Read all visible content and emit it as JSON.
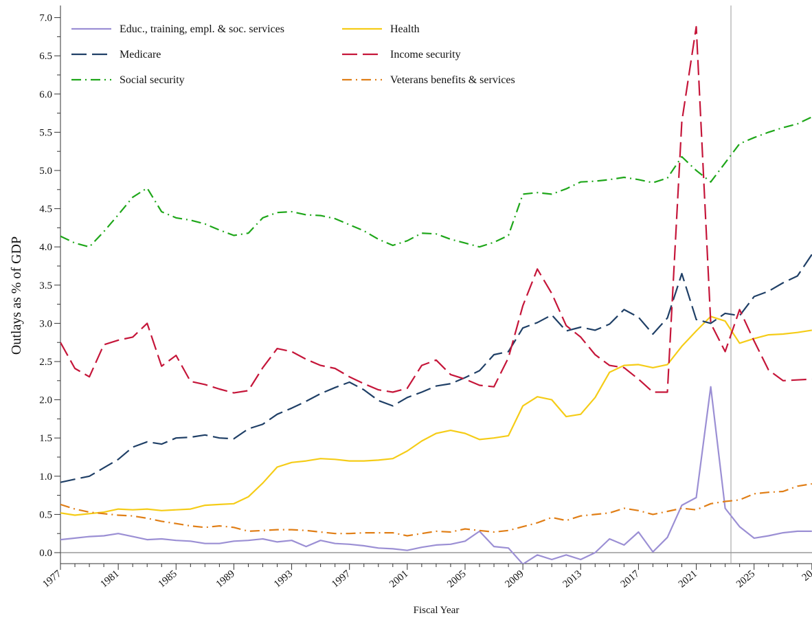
{
  "chart_data": {
    "type": "line",
    "xlabel": "Fiscal Year",
    "ylabel": "Outlays as % of GDP",
    "xlim": [
      1977,
      2029
    ],
    "ylim": [
      -0.15,
      7.1
    ],
    "yticks": [
      "0.0",
      "0.5",
      "1.0",
      "1.5",
      "2.0",
      "2.5",
      "3.0",
      "3.5",
      "4.0",
      "4.5",
      "5.0",
      "5.5",
      "6.0",
      "6.5",
      "7.0"
    ],
    "xticks": [
      "1977",
      "1981",
      "1985",
      "1989",
      "1993",
      "1997",
      "2001",
      "2005",
      "2009",
      "2013",
      "2017",
      "2021",
      "2025",
      "20"
    ],
    "projection_start": 2023.4,
    "grid": false,
    "legend_position": "top",
    "x": [
      1977,
      1978,
      1979,
      1980,
      1981,
      1982,
      1983,
      1984,
      1985,
      1986,
      1987,
      1988,
      1989,
      1990,
      1991,
      1992,
      1993,
      1994,
      1995,
      1996,
      1997,
      1998,
      1999,
      2000,
      2001,
      2002,
      2003,
      2004,
      2005,
      2006,
      2007,
      2008,
      2009,
      2010,
      2011,
      2012,
      2013,
      2014,
      2015,
      2016,
      2017,
      2018,
      2019,
      2020,
      2021,
      2022,
      2023,
      2024,
      2025,
      2026,
      2027,
      2028,
      2029
    ],
    "series": [
      {
        "name": "Educ., training, empl. & soc. services",
        "color": "#9b8fd4",
        "dash": "solid",
        "values": [
          0.17,
          0.19,
          0.21,
          0.22,
          0.25,
          0.21,
          0.17,
          0.18,
          0.16,
          0.15,
          0.12,
          0.12,
          0.15,
          0.16,
          0.18,
          0.14,
          0.16,
          0.08,
          0.16,
          0.12,
          0.11,
          0.09,
          0.06,
          0.05,
          0.03,
          0.07,
          0.1,
          0.11,
          0.15,
          0.28,
          0.08,
          0.06,
          -0.15,
          -0.03,
          -0.09,
          -0.03,
          -0.09,
          0.0,
          0.18,
          0.1,
          0.27,
          0.01,
          0.2,
          0.62,
          0.72,
          2.17,
          0.58,
          0.34,
          0.19,
          0.22,
          0.26,
          0.28,
          0.28
        ]
      },
      {
        "name": "Health",
        "color": "#f5cc17",
        "dash": "solid",
        "values": [
          0.52,
          0.49,
          0.51,
          0.53,
          0.57,
          0.56,
          0.57,
          0.55,
          0.56,
          0.57,
          0.62,
          0.63,
          0.64,
          0.73,
          0.91,
          1.12,
          1.18,
          1.2,
          1.23,
          1.22,
          1.2,
          1.2,
          1.21,
          1.23,
          1.33,
          1.46,
          1.56,
          1.6,
          1.56,
          1.48,
          1.5,
          1.53,
          1.92,
          2.04,
          2.0,
          1.78,
          1.81,
          2.03,
          2.36,
          2.45,
          2.46,
          2.42,
          2.46,
          2.7,
          2.9,
          3.09,
          3.03,
          2.74,
          2.8,
          2.85,
          2.86,
          2.88,
          2.91
        ]
      },
      {
        "name": "Medicare",
        "color": "#1f3f66",
        "dash": "longdash",
        "values": [
          0.92,
          0.96,
          1.0,
          1.11,
          1.22,
          1.38,
          1.45,
          1.42,
          1.5,
          1.51,
          1.54,
          1.5,
          1.49,
          1.62,
          1.68,
          1.81,
          1.89,
          1.98,
          2.08,
          2.16,
          2.23,
          2.13,
          1.99,
          1.92,
          2.03,
          2.1,
          2.18,
          2.21,
          2.29,
          2.38,
          2.59,
          2.63,
          2.94,
          3.01,
          3.11,
          2.9,
          2.95,
          2.91,
          2.99,
          3.18,
          3.08,
          2.86,
          3.07,
          3.65,
          3.05,
          3.0,
          3.13,
          3.1,
          3.35,
          3.42,
          3.53,
          3.62,
          3.9
        ]
      },
      {
        "name": "Income security",
        "color": "#c51539",
        "dash": "longdash",
        "values": [
          2.75,
          2.41,
          2.3,
          2.72,
          2.78,
          2.82,
          3.0,
          2.44,
          2.58,
          2.24,
          2.2,
          2.14,
          2.09,
          2.12,
          2.42,
          2.67,
          2.63,
          2.53,
          2.45,
          2.41,
          2.3,
          2.21,
          2.13,
          2.1,
          2.15,
          2.45,
          2.52,
          2.33,
          2.27,
          2.19,
          2.17,
          2.55,
          3.23,
          3.71,
          3.39,
          2.97,
          2.82,
          2.59,
          2.45,
          2.42,
          2.27,
          2.1,
          2.1,
          5.64,
          6.88,
          3.0,
          2.63,
          3.18,
          2.77,
          2.39,
          2.25,
          2.26,
          2.27
        ]
      },
      {
        "name": "Social security",
        "color": "#1ea619",
        "dash": "dashdot",
        "values": [
          4.14,
          4.05,
          4.0,
          4.2,
          4.42,
          4.65,
          4.77,
          4.46,
          4.38,
          4.35,
          4.3,
          4.22,
          4.15,
          4.18,
          4.38,
          4.45,
          4.46,
          4.42,
          4.41,
          4.37,
          4.29,
          4.21,
          4.1,
          4.02,
          4.08,
          4.18,
          4.17,
          4.1,
          4.05,
          4.0,
          4.06,
          4.15,
          4.69,
          4.71,
          4.69,
          4.76,
          4.85,
          4.86,
          4.88,
          4.91,
          4.88,
          4.84,
          4.9,
          5.18,
          5.0,
          4.85,
          5.1,
          5.35,
          5.43,
          5.5,
          5.56,
          5.61,
          5.7
        ]
      },
      {
        "name": "Veterans benefits & services",
        "color": "#e07e16",
        "dash": "dashdot",
        "values": [
          0.63,
          0.57,
          0.53,
          0.51,
          0.49,
          0.48,
          0.45,
          0.41,
          0.38,
          0.35,
          0.33,
          0.35,
          0.33,
          0.28,
          0.29,
          0.3,
          0.3,
          0.29,
          0.27,
          0.25,
          0.25,
          0.26,
          0.26,
          0.26,
          0.22,
          0.25,
          0.28,
          0.27,
          0.31,
          0.29,
          0.27,
          0.29,
          0.34,
          0.39,
          0.46,
          0.42,
          0.48,
          0.5,
          0.52,
          0.58,
          0.55,
          0.5,
          0.54,
          0.58,
          0.56,
          0.64,
          0.67,
          0.69,
          0.77,
          0.79,
          0.8,
          0.87,
          0.9
        ]
      }
    ]
  }
}
